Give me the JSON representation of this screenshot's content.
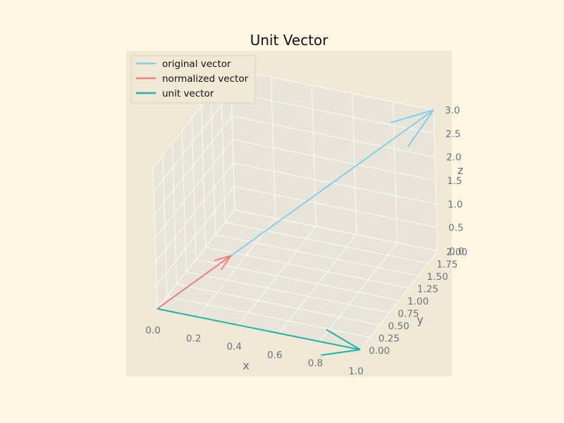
{
  "chart_data": {
    "type": "line",
    "projection": "3d",
    "title": "Unit Vector",
    "xlabel": "x",
    "ylabel": "y",
    "zlabel": "z",
    "xlim": [
      0,
      1
    ],
    "ylim": [
      0,
      2
    ],
    "zlim": [
      0,
      3
    ],
    "xticks": [
      "0.0",
      "0.2",
      "0.4",
      "0.6",
      "0.8",
      "1.0"
    ],
    "yticks": [
      "0.00",
      "0.25",
      "0.50",
      "0.75",
      "1.00",
      "1.25",
      "1.50",
      "1.75",
      "2.00"
    ],
    "zticks": [
      "0.0",
      "0.5",
      "1.0",
      "1.5",
      "2.0",
      "2.5",
      "3.0"
    ],
    "grid": true,
    "legend_position": "top-left",
    "series": [
      {
        "name": "original vector",
        "color": "#87ceeb",
        "start": [
          0,
          0,
          0
        ],
        "end": [
          1,
          2,
          3
        ]
      },
      {
        "name": "normalized vector",
        "color": "#f08080",
        "start": [
          0,
          0,
          0
        ],
        "end": [
          0.267,
          0.535,
          0.802
        ]
      },
      {
        "name": "unit vector",
        "color": "#20b2aa",
        "start": [
          0,
          0,
          0
        ],
        "end": [
          1,
          0,
          0
        ]
      }
    ]
  },
  "colors": {
    "figure_background": "#fdf6e3",
    "axes_background": "#eee8d5",
    "pane": "#e8e4da",
    "grid": "#fbfaf6",
    "tick_text": "#6a737b"
  }
}
